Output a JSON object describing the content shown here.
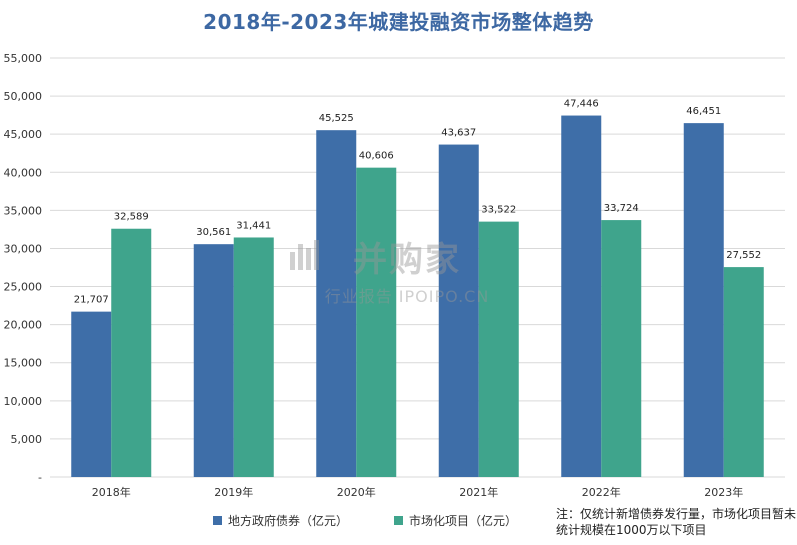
{
  "chart_data": {
    "type": "bar",
    "title": "2018年-2023年城建投融资市场整体趋势",
    "categories": [
      "2018年",
      "2019年",
      "2020年",
      "2021年",
      "2022年",
      "2023年"
    ],
    "series": [
      {
        "name": "地方政府债券（亿元）",
        "color": "#3e6ea8",
        "values": [
          21707,
          30561,
          45525,
          43637,
          47446,
          46451
        ],
        "labels": [
          "21,707",
          "30,561",
          "45,525",
          "43,637",
          "47,446",
          "46,451"
        ]
      },
      {
        "name": "市场化项目（亿元）",
        "color": "#3fa48c",
        "values": [
          32589,
          31441,
          40606,
          33522,
          33724,
          27552
        ],
        "labels": [
          "32,589",
          "31,441",
          "40,606",
          "33,522",
          "33,724",
          "27,552"
        ]
      }
    ],
    "ylim": [
      0,
      55000
    ],
    "yticks": [
      "-",
      "5,000",
      "10,000",
      "15,000",
      "20,000",
      "25,000",
      "30,000",
      "35,000",
      "40,000",
      "45,000",
      "50,000",
      "55,000"
    ],
    "grid": true,
    "legend_position": "bottom"
  },
  "footnote": "注：仅统计新增债券发行量，市场化项目暂未统计规模在1000万以下项目",
  "watermark": {
    "main": "并购家",
    "sub": "行业报告 IPOIPO.CN"
  }
}
